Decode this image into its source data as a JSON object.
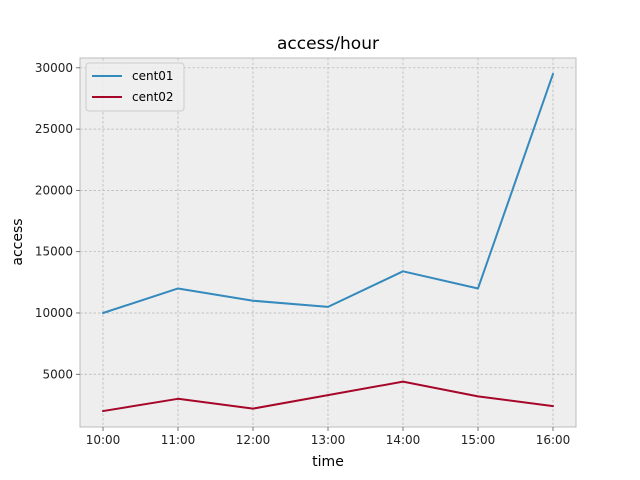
{
  "chart_data": {
    "type": "line",
    "title": "access/hour",
    "xlabel": "time",
    "ylabel": "access",
    "categories": [
      "10:00",
      "11:00",
      "12:00",
      "13:00",
      "14:00",
      "15:00",
      "16:00"
    ],
    "series": [
      {
        "name": "cent01",
        "color": "#348ABD",
        "values": [
          10000,
          12000,
          11000,
          10500,
          13400,
          12000,
          29500
        ]
      },
      {
        "name": "cent02",
        "color": "#A60628",
        "values": [
          2000,
          3000,
          2200,
          3300,
          4400,
          3200,
          2400
        ]
      }
    ],
    "ylim": [
      700,
      30800
    ],
    "yticks": [
      5000,
      10000,
      15000,
      20000,
      25000,
      30000
    ],
    "grid": true,
    "legend_position": "top-left",
    "colors": {
      "plot_background": "#EEEEEE",
      "grid": "#B2B2B2",
      "axes_edge": "#BCBCBC"
    }
  }
}
